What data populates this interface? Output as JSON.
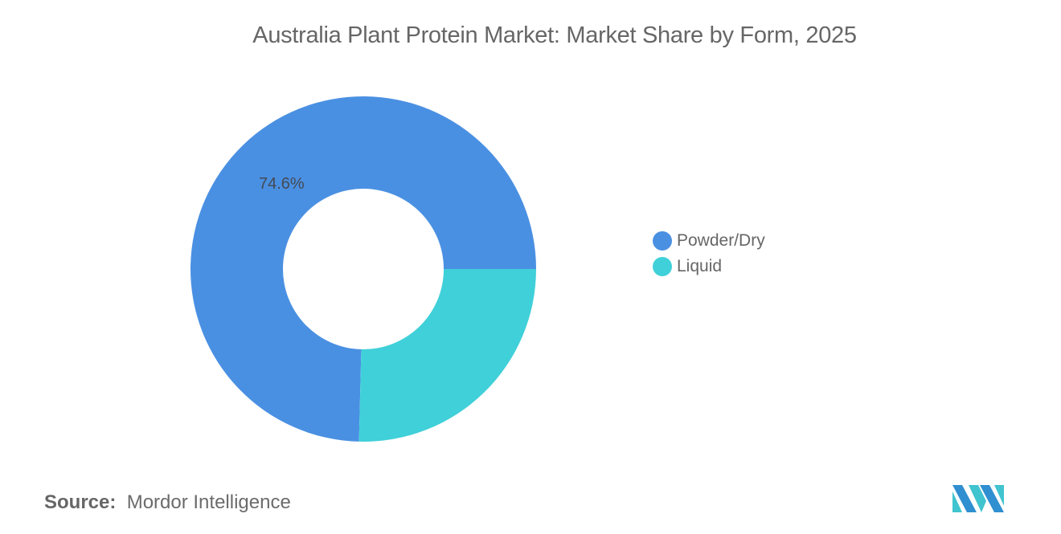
{
  "chart_data": {
    "type": "pie",
    "subtype": "donut",
    "title": "Australia Plant Protein Market: Market Share by Form, 2025",
    "categories": [
      "Powder/Dry",
      "Liquid"
    ],
    "values": [
      74.6,
      25.4
    ],
    "colors": [
      "#4a90e2",
      "#40d0d9"
    ],
    "data_labels": [
      {
        "category": "Powder/Dry",
        "label": "74.6%"
      }
    ],
    "legend_position": "right"
  },
  "title": "Australia Plant Protein Market: Market Share by Form, 2025",
  "slice_label": "74.6%",
  "legend": [
    {
      "label": "Powder/Dry",
      "color": "#4a90e2"
    },
    {
      "label": "Liquid",
      "color": "#40d0d9"
    }
  ],
  "source": {
    "prefix": "Source:",
    "name": "Mordor Intelligence"
  },
  "logo": "mordor-intelligence-logo"
}
